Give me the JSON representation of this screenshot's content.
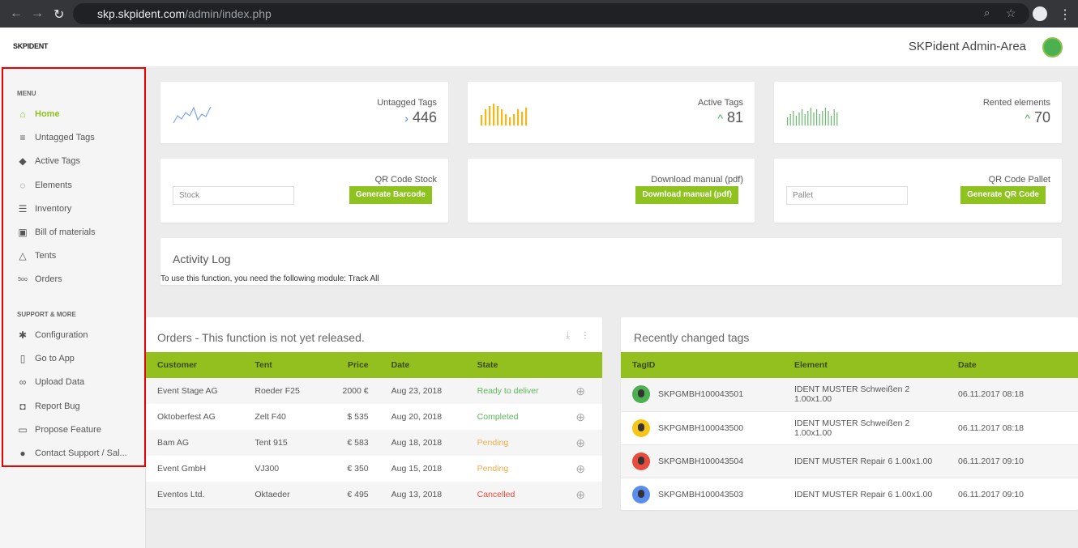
{
  "browser": {
    "url_host": "skp.skpident.com",
    "url_path": "/admin/index.php"
  },
  "header": {
    "logo": "SKPIDENT",
    "title": "SKPident Admin-Area"
  },
  "sidebar": {
    "menu_heading": "MENU",
    "items": [
      {
        "label": "Home",
        "icon": "home-icon",
        "active": true
      },
      {
        "label": "Untagged Tags",
        "icon": "list-icon"
      },
      {
        "label": "Active Tags",
        "icon": "tag-icon"
      },
      {
        "label": "Elements",
        "icon": "circle-dots-icon"
      },
      {
        "label": "Inventory",
        "icon": "inventory-list-icon"
      },
      {
        "label": "Bill of materials",
        "icon": "document-icon"
      },
      {
        "label": "Tents",
        "icon": "triangle-icon"
      },
      {
        "label": "Orders",
        "icon": "500-icon"
      }
    ],
    "support_heading": "SUPPORT & MORE",
    "support_items": [
      {
        "label": "Configuration",
        "icon": "gear-icon"
      },
      {
        "label": "Go to App",
        "icon": "phone-icon"
      },
      {
        "label": "Upload Data",
        "icon": "link-icon"
      },
      {
        "label": "Report Bug",
        "icon": "bug-icon"
      },
      {
        "label": "Propose Feature",
        "icon": "card-icon"
      },
      {
        "label": "Contact Support / Sal...",
        "icon": "location-pin-icon"
      }
    ]
  },
  "stats": [
    {
      "label": "Untagged Tags",
      "value": "446",
      "arrow": "›",
      "color": "#4a7fe0",
      "spark_color": "#7fa6ea"
    },
    {
      "label": "Active Tags",
      "value": "81",
      "arrow": "^",
      "color": "#4caf50",
      "spark_color": "#f7b614"
    },
    {
      "label": "Rented elements",
      "value": "70",
      "arrow": "^",
      "color": "#4caf50",
      "spark_color": "#66bb6a"
    }
  ],
  "actions": [
    {
      "label": "QR Code Stock",
      "placeholder": "Stock",
      "button": "Generate Barcode"
    },
    {
      "label": "Download manual (pdf)",
      "button": "Download manual (pdf)"
    },
    {
      "label": "QR Code Pallet",
      "placeholder": "Pallet",
      "button": "Generate QR Code"
    }
  ],
  "activity": {
    "title": "Activity Log",
    "message": "To use this function, you need the following module: Track All"
  },
  "orders": {
    "title": "Orders - This function is not yet released.",
    "columns": [
      "Customer",
      "Tent",
      "Price",
      "Date",
      "State"
    ],
    "rows": [
      {
        "customer": "Event Stage AG",
        "tent": "Roeder F25",
        "price": "2000 €",
        "date": "Aug 23, 2018",
        "state": "Ready to deliver",
        "status": "green"
      },
      {
        "customer": "Oktoberfest AG",
        "tent": "Zelt F40",
        "price": "$ 535",
        "date": "Aug 20, 2018",
        "state": "Completed",
        "status": "green"
      },
      {
        "customer": "Bam AG",
        "tent": "Tent 915",
        "price": "€ 583",
        "date": "Aug 18, 2018",
        "state": "Pending",
        "status": "orange"
      },
      {
        "customer": "Event GmbH",
        "tent": "VJ300",
        "price": "€ 350",
        "date": "Aug 15, 2018",
        "state": "Pending",
        "status": "orange"
      },
      {
        "customer": "Eventos Ltd.",
        "tent": "Oktaeder",
        "price": "€ 495",
        "date": "Aug 13, 2018",
        "state": "Cancelled",
        "status": "red"
      }
    ]
  },
  "tags": {
    "title": "Recently changed tags",
    "columns": [
      "TagID",
      "Element",
      "Date"
    ],
    "rows": [
      {
        "id": "SKPGMBH100043501",
        "element": "IDENT MUSTER Schweißen 2 1.00x1.00",
        "date": "06.11.2017 08:18",
        "avatar_color": "#4caf50"
      },
      {
        "id": "SKPGMBH100043500",
        "element": "IDENT MUSTER Schweißen 2 1.00x1.00",
        "date": "06.11.2017 08:18",
        "avatar_color": "#f5c518"
      },
      {
        "id": "SKPGMBH100043504",
        "element": "IDENT MUSTER Repair 6 1.00x1.00",
        "date": "06.11.2017 09:10",
        "avatar_color": "#e74c3c"
      },
      {
        "id": "SKPGMBH100043503",
        "element": "IDENT MUSTER Repair 6 1.00x1.00",
        "date": "06.11.2017 09:10",
        "avatar_color": "#5b8def"
      }
    ]
  }
}
